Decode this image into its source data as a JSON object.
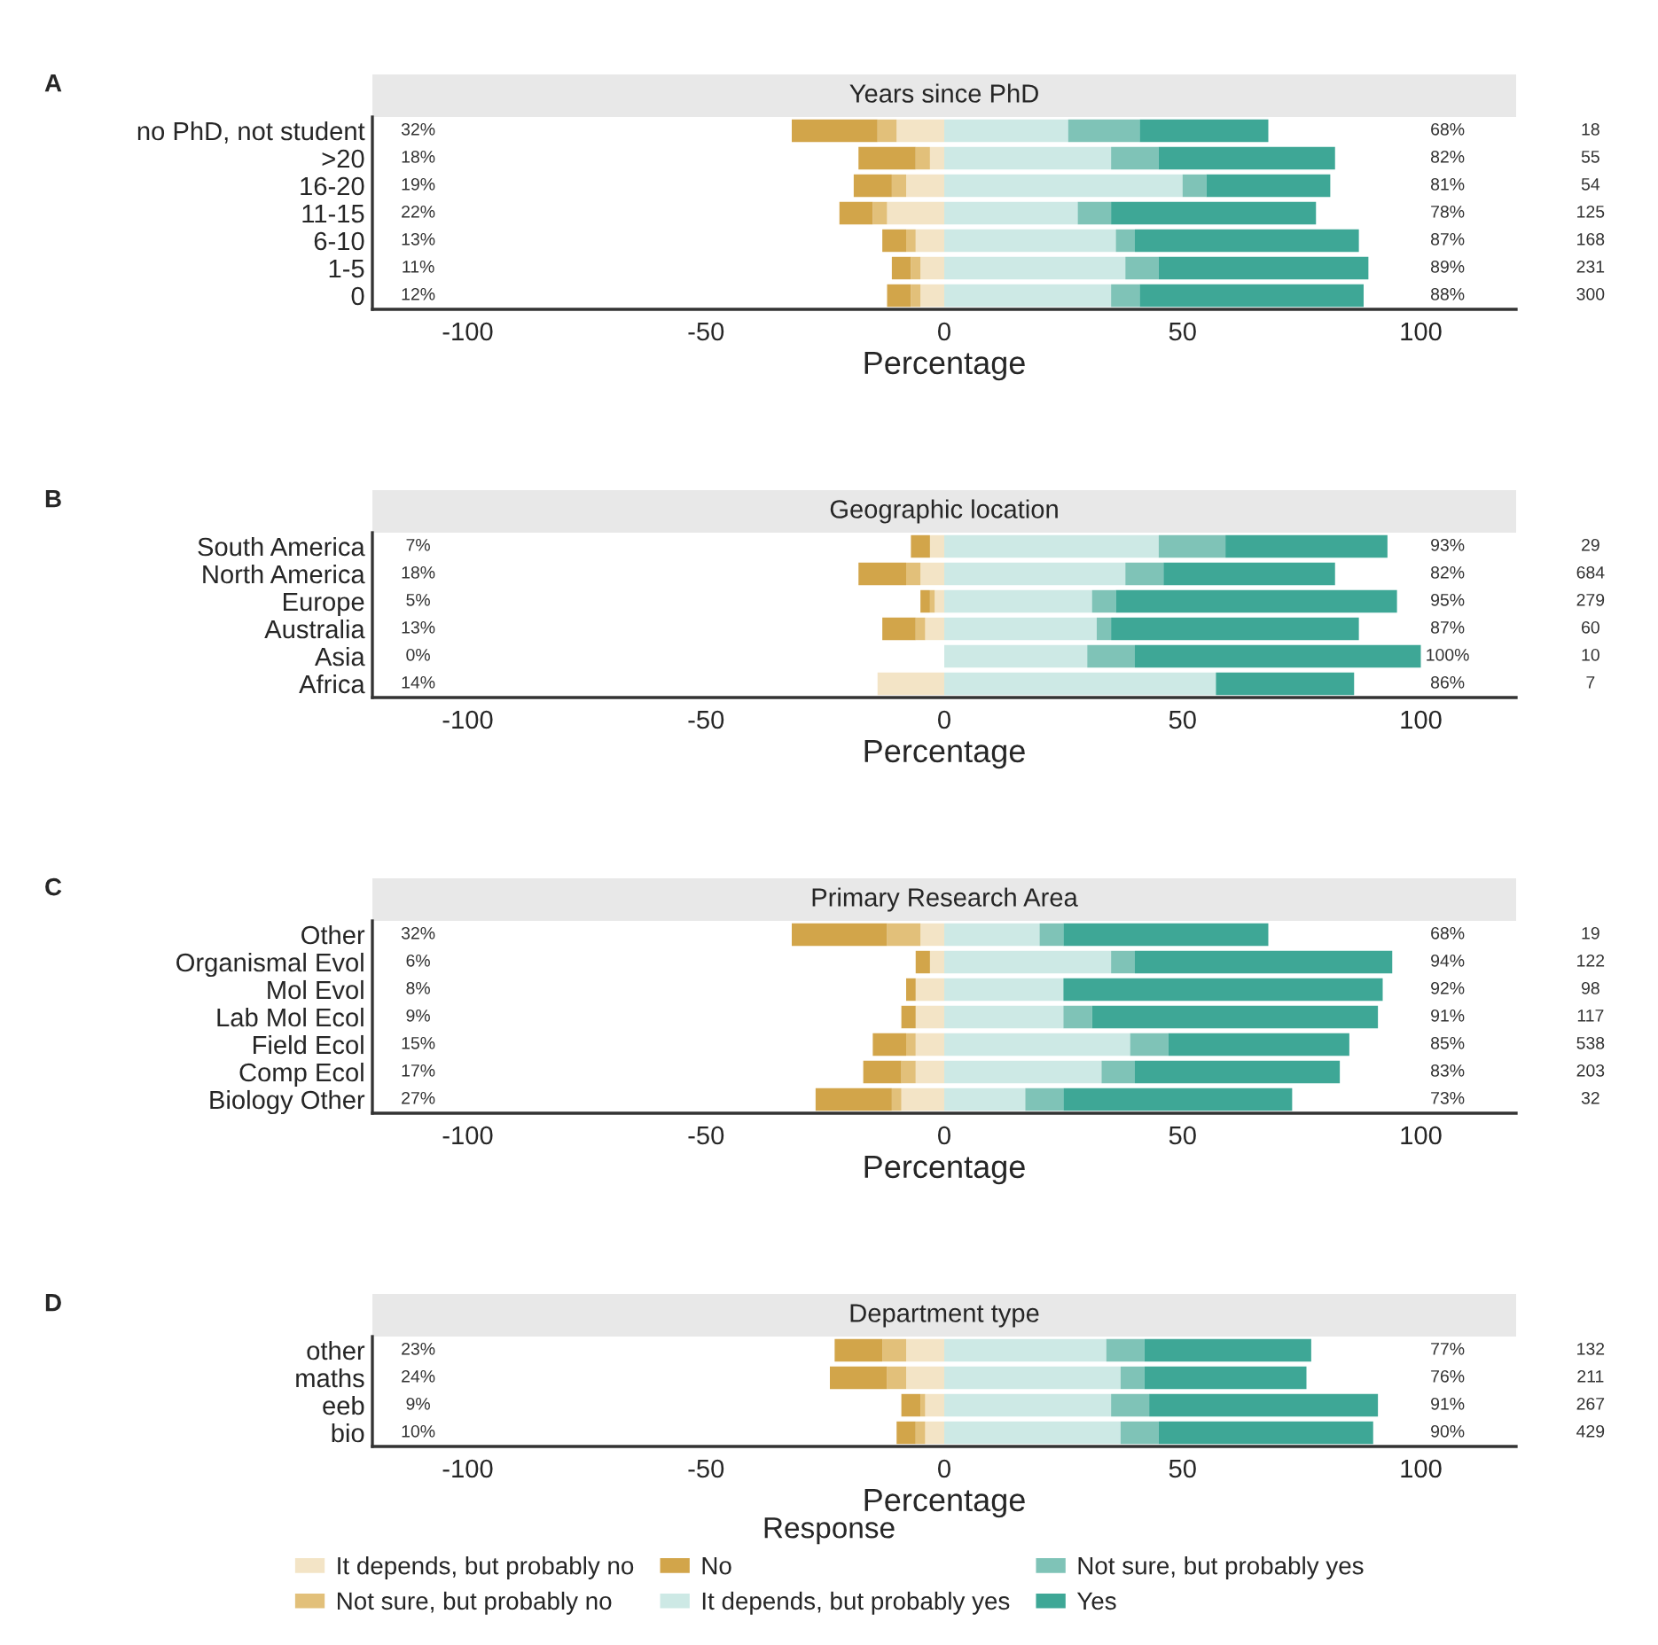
{
  "chart_data": [
    {
      "type": "bar",
      "orientation": "horizontal",
      "stacked": true,
      "title": "Years since PhD",
      "xlabel": "Percentage",
      "categories": [
        "no PhD, not student",
        ">20",
        "16-20",
        "11-15",
        "6-10",
        "1-5",
        "0"
      ],
      "xlim": [
        -120,
        120
      ],
      "xticks": [
        -100,
        -50,
        0,
        50,
        100
      ],
      "grid": false,
      "legend": false,
      "series": [
        {
          "color": "#f3e4c6",
          "values": [
            -10,
            -3,
            -8,
            -12,
            -6,
            -5,
            -5
          ]
        },
        {
          "color": "#e2c07a",
          "values": [
            -4,
            -3,
            -3,
            -3,
            -2,
            -2,
            -2
          ]
        },
        {
          "color": "#d2a54a",
          "values": [
            -18,
            -12,
            -8,
            -7,
            -5,
            -4,
            -5
          ]
        },
        {
          "color": "#cde9e5",
          "values": [
            26,
            35,
            50,
            28,
            36,
            38,
            35
          ]
        },
        {
          "color": "#7fc3b7",
          "values": [
            15,
            10,
            5,
            7,
            4,
            7,
            6
          ]
        },
        {
          "color": "#3ea796",
          "values": [
            27,
            37,
            26,
            43,
            47,
            44,
            47
          ]
        }
      ],
      "annotations": [
        "A",
        "32%",
        "18%",
        "19%",
        "22%",
        "13%",
        "11%",
        "12%",
        "68%",
        "82%",
        "81%",
        "78%",
        "87%",
        "89%",
        "88%",
        "18",
        "55",
        "54",
        "125",
        "168",
        "231",
        "300"
      ]
    },
    {
      "type": "bar",
      "orientation": "horizontal",
      "stacked": true,
      "title": "Geographic location",
      "xlabel": "Percentage",
      "categories": [
        "South America",
        "North America",
        "Europe",
        "Australia",
        "Asia",
        "Africa"
      ],
      "xlim": [
        -120,
        120
      ],
      "xticks": [
        -100,
        -50,
        0,
        50,
        100
      ],
      "grid": false,
      "legend": false,
      "series": [
        {
          "color": "#f3e4c6",
          "values": [
            -3,
            -5,
            -2,
            -4,
            0,
            -14
          ]
        },
        {
          "color": "#e2c07a",
          "values": [
            0,
            -3,
            -1,
            -2,
            0,
            0
          ]
        },
        {
          "color": "#d2a54a",
          "values": [
            -4,
            -10,
            -2,
            -7,
            0,
            0
          ]
        },
        {
          "color": "#cde9e5",
          "values": [
            45,
            38,
            31,
            32,
            30,
            57
          ]
        },
        {
          "color": "#7fc3b7",
          "values": [
            14,
            8,
            5,
            3,
            10,
            0
          ]
        },
        {
          "color": "#3ea796",
          "values": [
            34,
            36,
            59,
            52,
            60,
            29
          ]
        }
      ],
      "annotations": [
        "B",
        "7%",
        "18%",
        "5%",
        "13%",
        "0%",
        "14%",
        "93%",
        "82%",
        "95%",
        "87%",
        "100%",
        "86%",
        "29",
        "684",
        "279",
        "60",
        "10",
        "7"
      ]
    },
    {
      "type": "bar",
      "orientation": "horizontal",
      "stacked": true,
      "title": "Primary Research Area",
      "xlabel": "Percentage",
      "categories": [
        "Other",
        "Organismal Evol",
        "Mol Evol",
        "Lab Mol Ecol",
        "Field Ecol",
        "Comp Ecol",
        "Biology Other"
      ],
      "xlim": [
        -120,
        120
      ],
      "xticks": [
        -100,
        -50,
        0,
        50,
        100
      ],
      "grid": false,
      "legend": false,
      "series": [
        {
          "color": "#f3e4c6",
          "values": [
            -5,
            -3,
            -6,
            -6,
            -6,
            -6,
            -9
          ]
        },
        {
          "color": "#e2c07a",
          "values": [
            -7,
            0,
            0,
            0,
            -2,
            -3,
            -2
          ]
        },
        {
          "color": "#d2a54a",
          "values": [
            -20,
            -3,
            -2,
            -3,
            -7,
            -8,
            -16
          ]
        },
        {
          "color": "#cde9e5",
          "values": [
            20,
            35,
            25,
            25,
            39,
            33,
            17
          ]
        },
        {
          "color": "#7fc3b7",
          "values": [
            5,
            5,
            0,
            6,
            8,
            7,
            8
          ]
        },
        {
          "color": "#3ea796",
          "values": [
            43,
            54,
            67,
            60,
            38,
            43,
            48
          ]
        }
      ],
      "annotations": [
        "C",
        "32%",
        "6%",
        "8%",
        "9%",
        "15%",
        "17%",
        "27%",
        "68%",
        "94%",
        "92%",
        "91%",
        "85%",
        "83%",
        "73%",
        "19",
        "122",
        "98",
        "117",
        "538",
        "203",
        "32"
      ]
    },
    {
      "type": "bar",
      "orientation": "horizontal",
      "stacked": true,
      "title": "Department type",
      "xlabel": "Percentage",
      "legend_title": "Response",
      "categories": [
        "other",
        "maths",
        "eeb",
        "bio"
      ],
      "xlim": [
        -120,
        120
      ],
      "xticks": [
        -100,
        -50,
        0,
        50,
        100
      ],
      "grid": false,
      "legend": "bottom",
      "series": [
        {
          "name": "It depends, but probably no",
          "color": "#f3e4c6",
          "values": [
            -8,
            -8,
            -4,
            -4
          ]
        },
        {
          "name": "Not sure, but probably no",
          "color": "#e2c07a",
          "values": [
            -5,
            -4,
            -1,
            -2
          ]
        },
        {
          "name": "No",
          "color": "#d2a54a",
          "values": [
            -10,
            -12,
            -4,
            -4
          ]
        },
        {
          "name": "It depends, but probably yes",
          "color": "#cde9e5",
          "values": [
            34,
            37,
            35,
            37
          ]
        },
        {
          "name": "Not sure, but probably yes",
          "color": "#7fc3b7",
          "values": [
            8,
            5,
            8,
            8
          ]
        },
        {
          "name": "Yes",
          "color": "#3ea796",
          "values": [
            35,
            34,
            48,
            45
          ]
        }
      ],
      "annotations": [
        "D",
        "23%",
        "24%",
        "9%",
        "10%",
        "77%",
        "76%",
        "91%",
        "90%",
        "132",
        "211",
        "267",
        "429"
      ]
    }
  ]
}
